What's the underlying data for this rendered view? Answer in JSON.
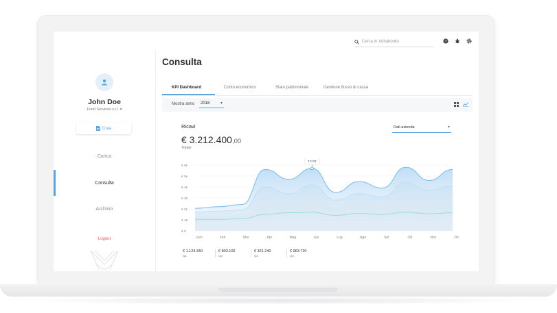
{
  "topbar": {
    "search_placeholder": "Cerca in Xribabooks",
    "icons": [
      "help-icon",
      "bug-icon",
      "settings-icon"
    ]
  },
  "sidebar": {
    "user_name": "John Doe",
    "company": "Food Services s.r.l.",
    "create_button": "Crea",
    "nav": [
      {
        "label": "Carica",
        "active": false
      },
      {
        "label": "Consulta",
        "active": true
      },
      {
        "label": "Archivio",
        "active": false
      }
    ],
    "logout": "Logout"
  },
  "main": {
    "title": "Consulta",
    "tabs": [
      {
        "label": "KPI Dashboard",
        "active": true
      },
      {
        "label": "Conto economico",
        "active": false
      },
      {
        "label": "Stato patrimoniale",
        "active": false
      },
      {
        "label": "Gestione flusso di cassa",
        "active": false
      }
    ],
    "filter": {
      "label": "Mostra anno",
      "year": "2018"
    },
    "card": {
      "title": "Ricavi",
      "dropdown": "Dati azienda",
      "total_main": "€ 3.212.400",
      "total_cents": ",00",
      "total_label": "Totale"
    },
    "quarters": [
      {
        "amount": "€ 1.124.340",
        "label": "Q1"
      },
      {
        "amount": "€ 803.100",
        "label": "Q2"
      },
      {
        "amount": "€ 321.240",
        "label": "Q3"
      },
      {
        "amount": "€ 963.720",
        "label": "Q4"
      }
    ]
  },
  "colors": {
    "accent": "#5aa5e0",
    "logout": "#e05555"
  },
  "chart_data": {
    "type": "area",
    "categories": [
      "Gen",
      "Feb",
      "Mar",
      "Apr",
      "Mag",
      "Giu",
      "Lug",
      "Ago",
      "Set",
      "Ott",
      "Nov",
      "Dic"
    ],
    "y_tick_labels": [
      "€ 0",
      "€ 1K",
      "€ 2k",
      "€ 3k",
      "€ 4k",
      "€ 5k",
      "€ 6k"
    ],
    "ylim": [
      0,
      6000
    ],
    "tooltip": {
      "category": "Giu",
      "value_label": "€ 5.7k€"
    },
    "series": [
      {
        "values": [
          2050,
          2200,
          2400,
          5600,
          4700,
          5700,
          3500,
          4500,
          3900,
          5800,
          4600,
          5600
        ],
        "color": "#7fbfe8"
      },
      {
        "values": [
          1700,
          1800,
          1900,
          4000,
          3400,
          4200,
          2800,
          3400,
          3100,
          4400,
          3700,
          4100
        ],
        "color": "#c3dcf2"
      },
      {
        "values": [
          1300,
          1300,
          1350,
          2700,
          2500,
          2900,
          2100,
          2600,
          2300,
          2900,
          2600,
          2800
        ],
        "color": "#dde6ee"
      },
      {
        "values": [
          1050,
          1050,
          1100,
          1500,
          1650,
          1700,
          1400,
          1600,
          1500,
          1700,
          1550,
          1650
        ],
        "color": "#8fded8"
      }
    ]
  }
}
